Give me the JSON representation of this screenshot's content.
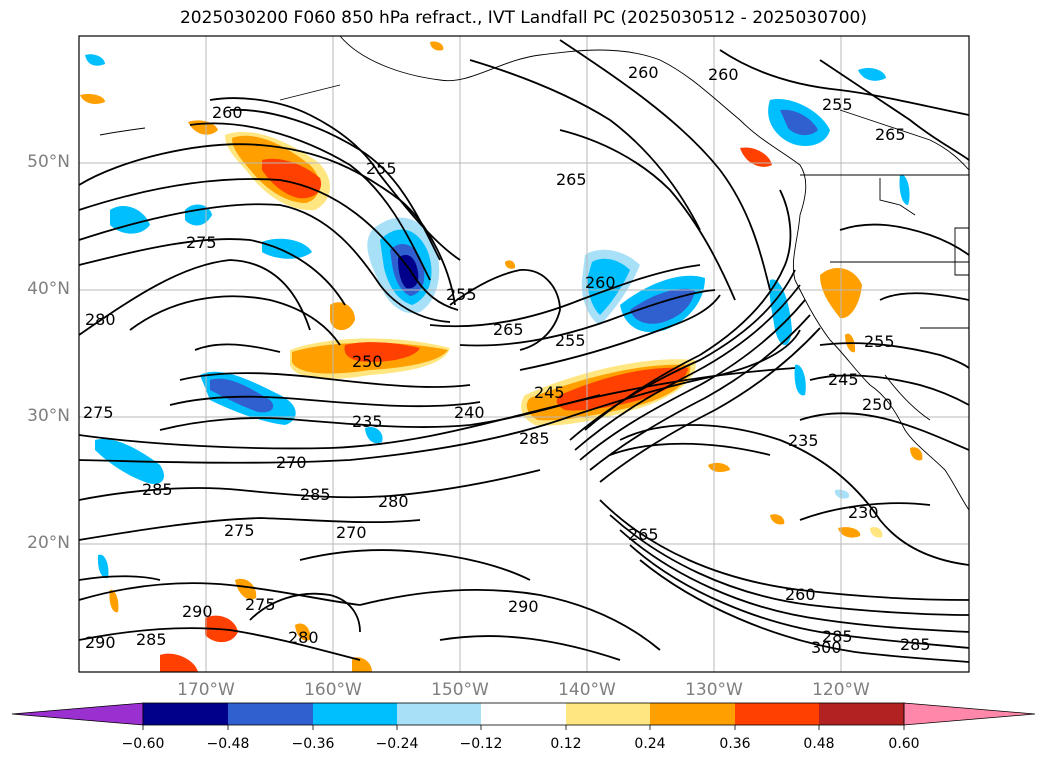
{
  "title": "2025030200 F060 850 hPa refract., IVT Landfall PC (2025030512 - 2025030700)",
  "latitude_labels": [
    "50°N",
    "40°N",
    "30°N",
    "20°N"
  ],
  "longitude_labels": [
    "170°W",
    "160°W",
    "150°W",
    "140°W",
    "130°W",
    "120°W"
  ],
  "contour_labels": [
    "260",
    "255",
    "265",
    "275",
    "280",
    "250",
    "255",
    "260",
    "265",
    "255",
    "235",
    "240",
    "245",
    "285",
    "275",
    "270",
    "285",
    "280",
    "275",
    "270",
    "285",
    "290",
    "280",
    "290",
    "285",
    "290",
    "230",
    "235",
    "245",
    "250",
    "255",
    "260",
    "265",
    "260",
    "265",
    "285",
    "300",
    "285",
    "255",
    "260",
    "275"
  ],
  "colorbar": {
    "ticks": [
      "−0.60",
      "−0.48",
      "−0.36",
      "−0.24",
      "−0.12",
      "0.12",
      "0.24",
      "0.36",
      "0.48",
      "0.60"
    ],
    "colors": [
      "#9b30d0",
      "#00008b",
      "#3060d0",
      "#00bfff",
      "#a8e0f8",
      "#ffffff",
      "#ffe680",
      "#ffa000",
      "#ff4000",
      "#b22222",
      "#ff88aa"
    ]
  }
}
